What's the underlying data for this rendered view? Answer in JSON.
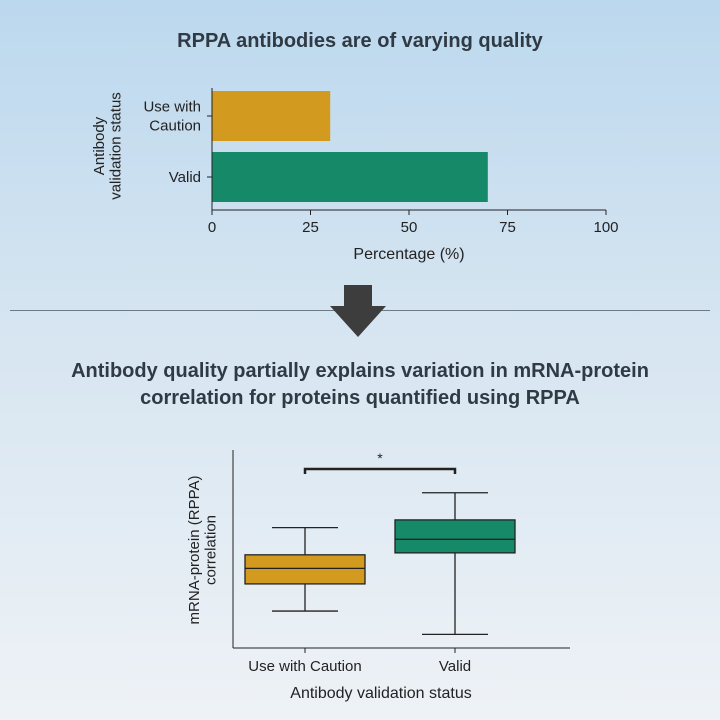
{
  "panel_top": {
    "title": "RPPA antibodies are of varying quality"
  },
  "panel_bottom": {
    "title_line1": "Antibody quality partially explains variation in mRNA-protein",
    "title_line2": "correlation for proteins quantified using RPPA"
  },
  "colors": {
    "caution": "#d29a1f",
    "valid": "#168a68",
    "arrow": "#3d3d3d"
  },
  "chart_data": [
    {
      "type": "bar",
      "orientation": "horizontal",
      "title": "RPPA antibodies are of varying quality",
      "categories": [
        "Use with Caution",
        "Valid"
      ],
      "category_lines": [
        [
          "Use with",
          "Caution"
        ],
        [
          "Valid"
        ]
      ],
      "values": [
        30,
        70
      ],
      "xlabel": "Percentage (%)",
      "ylabel_lines": [
        "Antibody",
        "validation status"
      ],
      "xlim": [
        0,
        100
      ],
      "xticks": [
        0,
        25,
        50,
        75,
        100
      ]
    },
    {
      "type": "box",
      "title": "Antibody quality partially explains variation in mRNA-protein correlation for proteins quantified using RPPA",
      "categories": [
        "Use with Caution",
        "Valid"
      ],
      "series": [
        {
          "name": "Use with Caution",
          "whisker_low": 0.18,
          "q1": 0.32,
          "median": 0.4,
          "q3": 0.47,
          "whisker_high": 0.61
        },
        {
          "name": "Valid",
          "whisker_low": 0.06,
          "q1": 0.48,
          "median": 0.55,
          "q3": 0.65,
          "whisker_high": 0.79
        }
      ],
      "ylim": [
        0,
        1
      ],
      "xlabel": "Antibody validation status",
      "ylabel_lines": [
        "mRNA-protein (RPPA)",
        "correlation"
      ],
      "significance": "*"
    }
  ]
}
